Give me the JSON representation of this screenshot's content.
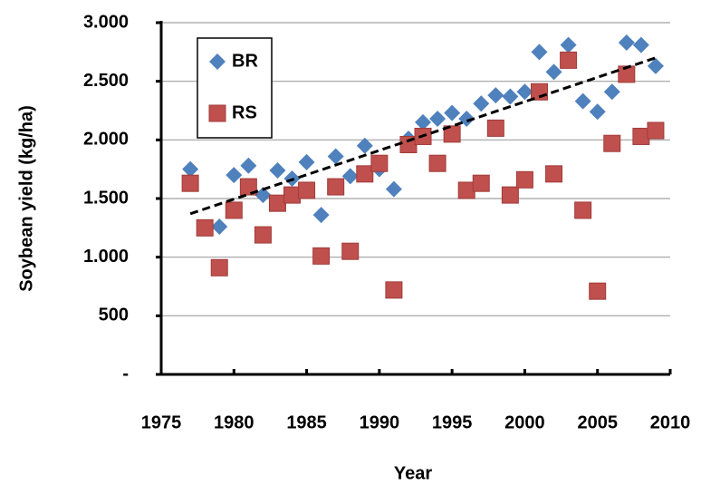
{
  "chart_data": {
    "type": "scatter",
    "x_label": "Year",
    "y_label": "Soybean yield (kg/ha)",
    "xlim": [
      1975,
      2010
    ],
    "xticks": [
      1975,
      1980,
      1985,
      1990,
      1995,
      2000,
      2005,
      2010
    ],
    "ylim": [
      0,
      3000
    ],
    "yticks": [
      {
        "value": 0,
        "label": "-"
      },
      500,
      {
        "value": 1000,
        "label": "1.000"
      },
      {
        "value": 1500,
        "label": "1.500"
      },
      {
        "value": 2000,
        "label": "2.000"
      },
      {
        "value": 2500,
        "label": "2.500"
      },
      {
        "value": 3000,
        "label": "3.000"
      }
    ],
    "grid": true,
    "legend": "upper left",
    "series": [
      {
        "name": "BR",
        "color": "#4f81bd",
        "marker": "diamond",
        "x": [
          1977,
          1979,
          1980,
          1981,
          1982,
          1983,
          1984,
          1985,
          1986,
          1987,
          1988,
          1989,
          1990,
          1991,
          1992,
          1993,
          1994,
          1995,
          1996,
          1997,
          1998,
          1999,
          2000,
          2001,
          2002,
          2003,
          2004,
          2005,
          2006,
          2007,
          2008,
          2009
        ],
        "values": [
          1750,
          1260,
          1700,
          1780,
          1530,
          1740,
          1670,
          1810,
          1360,
          1860,
          1690,
          1950,
          1750,
          1580,
          2010,
          2150,
          2180,
          2230,
          2180,
          2310,
          2380,
          2370,
          2410,
          2750,
          2580,
          2810,
          2330,
          2240,
          2410,
          2830,
          2810,
          2630
        ]
      },
      {
        "name": "RS",
        "color": "#c0504d",
        "marker": "square",
        "x": [
          1977,
          1978,
          1979,
          1980,
          1981,
          1982,
          1983,
          1984,
          1985,
          1986,
          1987,
          1988,
          1989,
          1990,
          1991,
          1992,
          1993,
          1994,
          1995,
          1996,
          1997,
          1998,
          1999,
          2000,
          2001,
          2002,
          2003,
          2004,
          2005,
          2006,
          2007,
          2008,
          2009
        ],
        "values": [
          1630,
          1250,
          910,
          1400,
          1600,
          1190,
          1460,
          1530,
          1570,
          1010,
          1600,
          1050,
          1710,
          1800,
          720,
          1960,
          2030,
          1800,
          2050,
          1570,
          1630,
          2100,
          1530,
          1660,
          2410,
          1710,
          2680,
          1400,
          710,
          1970,
          2560,
          2030,
          2080
        ]
      }
    ],
    "trend": {
      "color": "#000000",
      "x": [
        1977,
        2009
      ],
      "values": [
        1370,
        2700
      ]
    }
  }
}
